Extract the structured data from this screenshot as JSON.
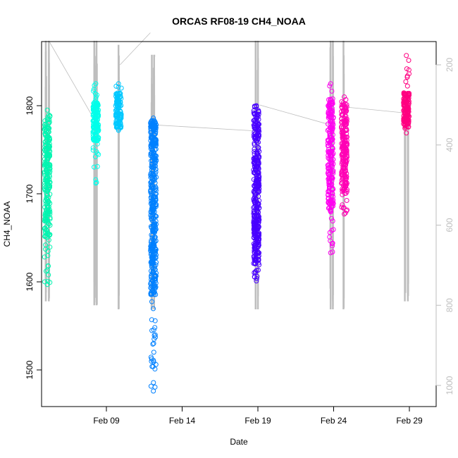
{
  "chart_data": {
    "type": "scatter",
    "title": "ORCAS RF08-19 CH4_NOAA",
    "xlabel": "Date",
    "ylabel": "CH4_NOAA",
    "x_range_days": [
      0,
      25.9
    ],
    "x_origin_date": "2016-02-04",
    "ylim": [
      1461,
      1872
    ],
    "y2lim": [
      1060,
      150
    ],
    "x_ticks": [
      {
        "label": "Feb 09",
        "day": 5
      },
      {
        "label": "Feb 14",
        "day": 10
      },
      {
        "label": "Feb 19",
        "day": 15
      },
      {
        "label": "Feb 24",
        "day": 20
      },
      {
        "label": "Feb 29",
        "day": 25
      }
    ],
    "y_ticks": [
      1500,
      1600,
      1700,
      1800
    ],
    "y2_ticks": [
      200,
      400,
      600,
      800,
      1000
    ],
    "grid": false,
    "colors": {
      "pressure": "#bebebe",
      "axis": "#000000",
      "flights": [
        "#00f5b0",
        "#00ffea",
        "#00c8ff",
        "#0080ff",
        "#4800ff",
        "#ff00f0",
        "#ff00b4",
        "#ff0080"
      ]
    },
    "series": [
      {
        "day": 1.1,
        "center": 1782,
        "low": 1597,
        "high": 1795,
        "core_low": 1650,
        "core_high": 1790,
        "color": "#00f5b0",
        "n": 240
      },
      {
        "day": 4.3,
        "center": 1785,
        "low": 1712,
        "high": 1825,
        "core_low": 1760,
        "core_high": 1805,
        "color": "#00ffea",
        "n": 150
      },
      {
        "day": 5.8,
        "center": 1790,
        "low": 1772,
        "high": 1825,
        "core_low": 1775,
        "core_high": 1815,
        "color": "#00c8ff",
        "n": 120
      },
      {
        "day": 8.1,
        "center": 1700,
        "low": 1476,
        "high": 1786,
        "core_low": 1585,
        "core_high": 1785,
        "color": "#0080ff",
        "n": 420
      },
      {
        "day": 14.9,
        "center": 1720,
        "low": 1601,
        "high": 1800,
        "core_low": 1620,
        "core_high": 1795,
        "color": "#4800ff",
        "n": 380
      },
      {
        "day": 19.8,
        "center": 1750,
        "low": 1633,
        "high": 1825,
        "core_low": 1680,
        "core_high": 1810,
        "color": "#ff00f0",
        "n": 220
      },
      {
        "day": 20.7,
        "center": 1760,
        "low": 1677,
        "high": 1810,
        "core_low": 1700,
        "core_high": 1805,
        "color": "#ff00b4",
        "n": 220
      },
      {
        "day": 24.8,
        "center": 1797,
        "low": 1769,
        "high": 1857,
        "core_low": 1775,
        "core_high": 1815,
        "color": "#ff0080",
        "n": 140
      }
    ],
    "pressure_overlay": [
      {
        "from_day": 1.2,
        "from_p": 140,
        "to_day": 4.1,
        "to_p": 330
      },
      {
        "from_day": 5.9,
        "from_p": 200,
        "to_day": 7.9,
        "to_p": 120
      },
      {
        "from_day": 8.2,
        "from_p": 180,
        "to_day": 8.2,
        "to_p": 175
      },
      {
        "from_day": 8.2,
        "from_p": 350,
        "to_day": 14.9,
        "to_p": 365
      },
      {
        "from_day": 15.1,
        "from_p": 300,
        "to_day": 19.8,
        "to_p": 350
      },
      {
        "from_day": 20.7,
        "from_p": 305,
        "to_day": 24.7,
        "to_p": 320
      }
    ],
    "pressure_profiles": [
      {
        "day": 1.0,
        "min": 140,
        "max": 790
      },
      {
        "day": 1.2,
        "min": 140,
        "max": 790
      },
      {
        "day": 4.2,
        "min": 140,
        "max": 800
      },
      {
        "day": 4.35,
        "min": 140,
        "max": 800
      },
      {
        "day": 5.8,
        "min": 150,
        "max": 810
      },
      {
        "day": 8.0,
        "min": 175,
        "max": 810
      },
      {
        "day": 8.15,
        "min": 175,
        "max": 810
      },
      {
        "day": 14.85,
        "min": 140,
        "max": 810
      },
      {
        "day": 15.0,
        "min": 140,
        "max": 810
      },
      {
        "day": 19.8,
        "min": 140,
        "max": 810
      },
      {
        "day": 19.95,
        "min": 140,
        "max": 810
      },
      {
        "day": 20.65,
        "min": 140,
        "max": 810
      },
      {
        "day": 24.7,
        "min": 300,
        "max": 790
      },
      {
        "day": 24.9,
        "min": 300,
        "max": 790
      }
    ]
  }
}
